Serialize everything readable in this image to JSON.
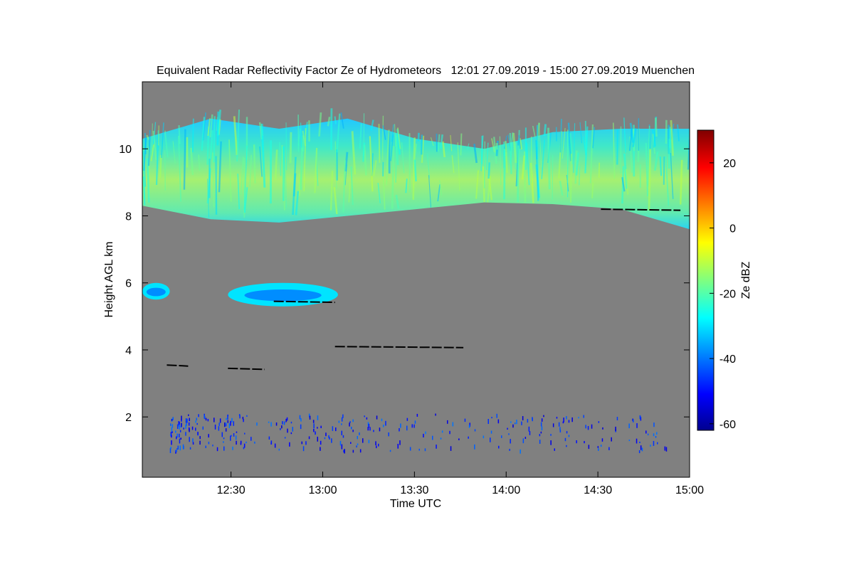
{
  "chart_data": {
    "type": "heatmap",
    "title": "Equivalent Radar Reflectivity Factor Ze of Hydrometeors   12:01 27.09.2019 - 15:00 27.09.2019 Muenchen",
    "xlabel": "Time UTC",
    "ylabel": "Height AGL km",
    "x_ticks": [
      "12:30",
      "13:00",
      "13:30",
      "14:00",
      "14:30",
      "15:00"
    ],
    "y_ticks": [
      "2",
      "4",
      "6",
      "8",
      "10"
    ],
    "xlim": [
      "12:01",
      "15:00"
    ],
    "ylim": [
      0.2,
      12.0
    ],
    "background_color": "#808080",
    "colorbar": {
      "label": "Ze dBZ",
      "range": [
        -62,
        30
      ],
      "ticks": [
        "-60",
        "-40",
        "-20",
        "0",
        "20"
      ],
      "colors": [
        "#00008f",
        "#0000ff",
        "#00ffff",
        "#ffff00",
        "#ff0000",
        "#800000"
      ]
    },
    "regions": [
      {
        "name": "Cirrus layer",
        "time_start": "12:01",
        "time_end": "15:00",
        "base_km": [
          8.3,
          7.9,
          7.8,
          8.0,
          8.2,
          8.4,
          8.35,
          8.2,
          7.6
        ],
        "top_km": [
          10.3,
          10.9,
          10.6,
          10.9,
          10.3,
          10.0,
          10.5,
          10.6,
          10.6
        ],
        "ze_dbz_range": [
          -35,
          -10
        ]
      },
      {
        "name": "Mid-level cloud 1",
        "time_start": "12:01",
        "time_end": "12:10",
        "base_km": 5.5,
        "top_km": 6.0,
        "ze_dbz_range": [
          -40,
          -25
        ]
      },
      {
        "name": "Mid-level cloud 2",
        "time_start": "12:29",
        "time_end": "13:05",
        "base_km": 5.3,
        "top_km": 6.0,
        "ze_dbz_range": [
          -40,
          -25
        ]
      },
      {
        "name": "Low-level clutter",
        "time_start": "12:10",
        "time_end": "14:55",
        "base_km": 1.0,
        "top_km": 2.1,
        "ze_dbz_range": [
          -55,
          -40
        ]
      }
    ],
    "black_line_segments": [
      {
        "time_start": "12:09",
        "time_end": "12:16",
        "height_km": 3.55
      },
      {
        "time_start": "12:29",
        "time_end": "12:41",
        "height_km": 3.45
      },
      {
        "time_start": "13:04",
        "time_end": "13:46",
        "height_km": 4.1
      },
      {
        "time_start": "12:44",
        "time_end": "13:04",
        "height_km": 5.45
      },
      {
        "time_start": "14:31",
        "time_end": "14:57",
        "height_km": 8.2
      }
    ],
    "grid": false,
    "legend": "colorbar-right"
  }
}
